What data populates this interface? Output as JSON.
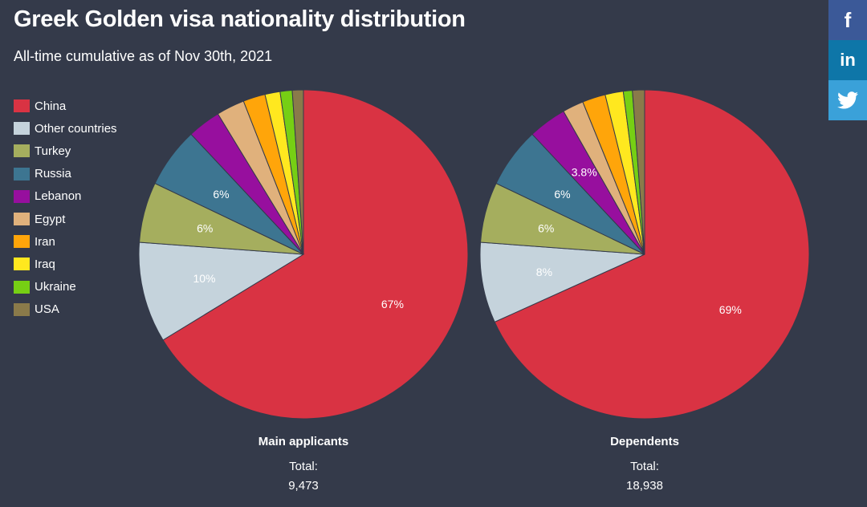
{
  "title": "Greek Golden visa nationality distribution",
  "subtitle": "All-time cumulative as of Nov 30th, 2021",
  "social": {
    "facebook": "f",
    "linkedin": "in"
  },
  "chart_data": {
    "type": "pie",
    "categories": [
      "China",
      "Other countries",
      "Turkey",
      "Russia",
      "Lebanon",
      "Egypt",
      "Iran",
      "Iraq",
      "Ukraine",
      "USA"
    ],
    "colors": [
      "#d93343",
      "#c5d3dc",
      "#a5ae5e",
      "#3d7591",
      "#970f9e",
      "#e0b17c",
      "#ffa50a",
      "#ffe81f",
      "#76cf14",
      "#8a7a4a"
    ],
    "legend_position": "left",
    "pies": [
      {
        "name": "Main applicants",
        "total_label": "Total:",
        "total": "9,473",
        "values": [
          67,
          10,
          6,
          6,
          3.3,
          2.8,
          2.2,
          1.5,
          1.2,
          1.1
        ],
        "labels": [
          "67%",
          "10%",
          "6%",
          "6%",
          "",
          "",
          "",
          "",
          "",
          ""
        ]
      },
      {
        "name": "Dependents",
        "total_label": "Total:",
        "total": "18,938",
        "values": [
          69,
          8,
          6,
          6,
          3.8,
          2.1,
          2.3,
          1.8,
          0.9,
          1.2
        ],
        "labels": [
          "69%",
          "8%",
          "6%",
          "6%",
          "3.8%",
          "",
          "",
          "",
          "",
          ""
        ]
      }
    ]
  }
}
